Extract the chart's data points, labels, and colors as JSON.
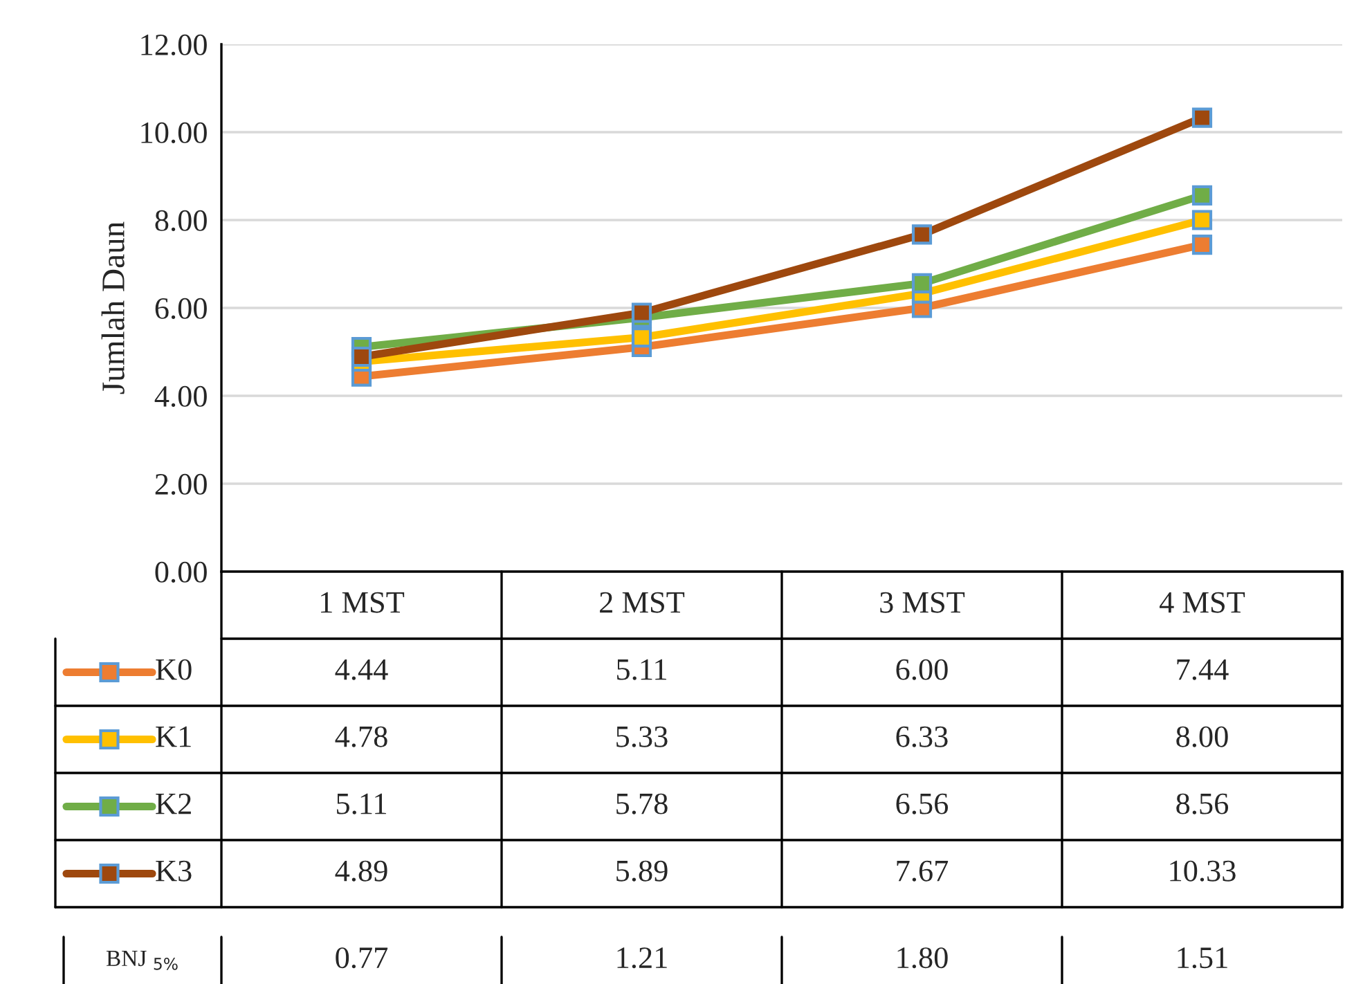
{
  "chart_data": {
    "type": "line",
    "ylabel": "Jumlah Daun",
    "categories": [
      "1 MST",
      "2 MST",
      "3 MST",
      "4 MST"
    ],
    "series": [
      {
        "name": "K0",
        "color": "#ed7d31",
        "values": [
          4.44,
          5.11,
          6.0,
          7.44
        ],
        "value_labels": [
          "4.44",
          "5.11",
          "6.00",
          "7.44"
        ]
      },
      {
        "name": "K1",
        "color": "#ffc000",
        "values": [
          4.78,
          5.33,
          6.33,
          8.0
        ],
        "value_labels": [
          "4.78",
          "5.33",
          "6.33",
          "8.00"
        ]
      },
      {
        "name": "K2",
        "color": "#70ad47",
        "values": [
          5.11,
          5.78,
          6.56,
          8.56
        ],
        "value_labels": [
          "5.11",
          "5.78",
          "6.56",
          "8.56"
        ]
      },
      {
        "name": "K3",
        "color": "#9e480e",
        "values": [
          4.89,
          5.89,
          7.67,
          10.33
        ],
        "value_labels": [
          "4.89",
          "5.89",
          "7.67",
          "10.33"
        ]
      }
    ],
    "ylim": [
      0,
      12
    ],
    "yticks": [
      {
        "value": 0,
        "label": "0.00"
      },
      {
        "value": 2,
        "label": "2.00"
      },
      {
        "value": 4,
        "label": "4.00"
      },
      {
        "value": 6,
        "label": "6.00"
      },
      {
        "value": 8,
        "label": "8.00"
      },
      {
        "value": 10,
        "label": "10.00"
      },
      {
        "value": 12,
        "label": "12.00"
      }
    ],
    "grid": "y",
    "marker": "square",
    "line_style": "solid",
    "legend": "bottom",
    "annotations": [
      "BNJ $_{5%}$",
      "0.77",
      "1.21",
      "1.80",
      "1.51"
    ]
  }
}
